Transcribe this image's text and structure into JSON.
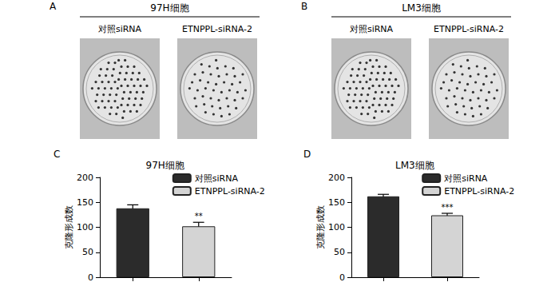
{
  "photo_panels": [
    {
      "panel": "A",
      "title": "97H细胞",
      "labels": [
        "对照siRNA",
        "ETNPPL-siRNA-2"
      ]
    },
    {
      "panel": "B",
      "title": "LM3细胞",
      "labels": [
        "对照siRNA",
        "ETNPPL-siRNA-2"
      ]
    }
  ],
  "chart_data": [
    {
      "type": "bar",
      "panel": "C",
      "title": "97H细胞",
      "y_label": "克隆形成数",
      "categories": [
        null,
        null
      ],
      "series": [
        {
          "name": "对照siRNA",
          "color": "#2b2b2b",
          "values": [
            138,
            null
          ],
          "errors": [
            7,
            null
          ]
        },
        {
          "name": "ETNPPL-siRNA-2",
          "color": "#d4d4d4",
          "values": [
            null,
            102
          ],
          "errors": [
            null,
            8
          ]
        }
      ],
      "ylim": [
        0,
        200
      ],
      "yticks": [
        0,
        50,
        100,
        150,
        200
      ],
      "grid": false,
      "legend": "upper right",
      "annotations": [
        {
          "text": "**",
          "series": "ETNPPL-siRNA-2"
        }
      ]
    },
    {
      "type": "bar",
      "panel": "D",
      "title": "LM3细胞",
      "y_label": "克隆形成数",
      "categories": [
        null,
        null
      ],
      "series": [
        {
          "name": "对照siRNA",
          "color": "#2b2b2b",
          "values": [
            162,
            null
          ],
          "errors": [
            4,
            null
          ]
        },
        {
          "name": "ETNPPL-siRNA-2",
          "color": "#d4d4d4",
          "values": [
            null,
            124
          ],
          "errors": [
            null,
            4
          ]
        }
      ],
      "ylim": [
        0,
        200
      ],
      "yticks": [
        0,
        50,
        100,
        150,
        200
      ],
      "grid": false,
      "legend": "upper right",
      "annotations": [
        {
          "text": "***",
          "series": "ETNPPL-siRNA-2"
        }
      ]
    }
  ]
}
